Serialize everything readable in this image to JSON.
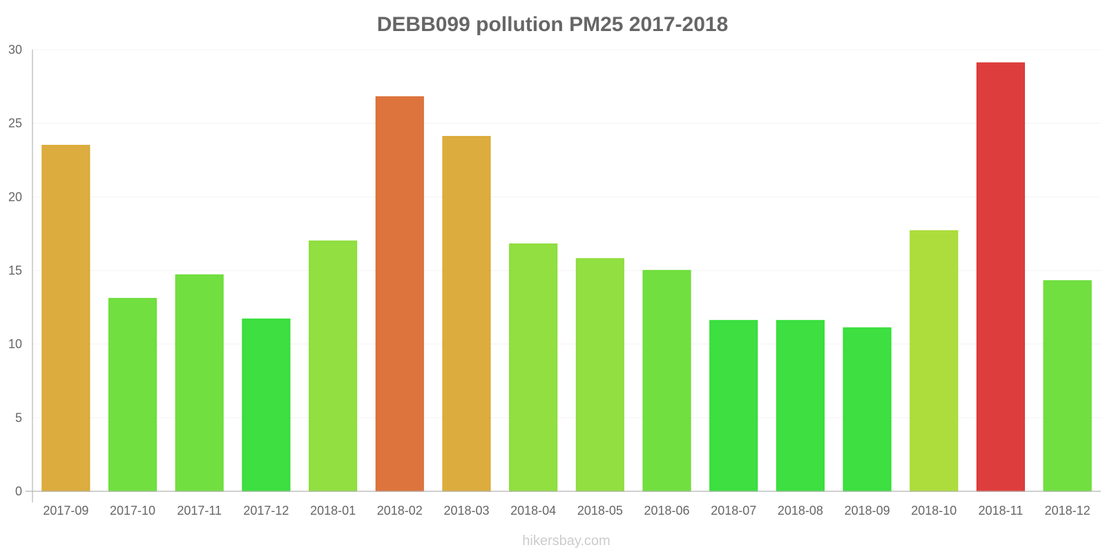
{
  "chart_data": {
    "type": "bar",
    "title": "DEBB099 pollution PM25 2017-2018",
    "xlabel": "",
    "ylabel": "",
    "ylim": [
      0,
      30
    ],
    "yticks": [
      0,
      5,
      10,
      15,
      20,
      25,
      30
    ],
    "grid": true,
    "categories": [
      "2017-09",
      "2017-10",
      "2017-11",
      "2017-12",
      "2018-01",
      "2018-02",
      "2018-03",
      "2018-04",
      "2018-05",
      "2018-06",
      "2018-07",
      "2018-08",
      "2018-09",
      "2018-10",
      "2018-11",
      "2018-12"
    ],
    "values": [
      23.5,
      13.1,
      14.7,
      11.7,
      17.0,
      26.8,
      24.1,
      16.8,
      15.8,
      15.0,
      11.6,
      11.6,
      11.1,
      17.7,
      29.1,
      14.3
    ],
    "colors": [
      "#DAA934",
      "#6ADD37",
      "#6ADD37",
      "#33DD37",
      "#8BDD37",
      "#DB6D33",
      "#DAA934",
      "#8BDD37",
      "#8BDD37",
      "#6ADD37",
      "#33DD37",
      "#33DD37",
      "#33DD37",
      "#A9DB33",
      "#DB3433",
      "#6ADD37"
    ]
  },
  "footer": {
    "source": "hikersbay.com"
  }
}
